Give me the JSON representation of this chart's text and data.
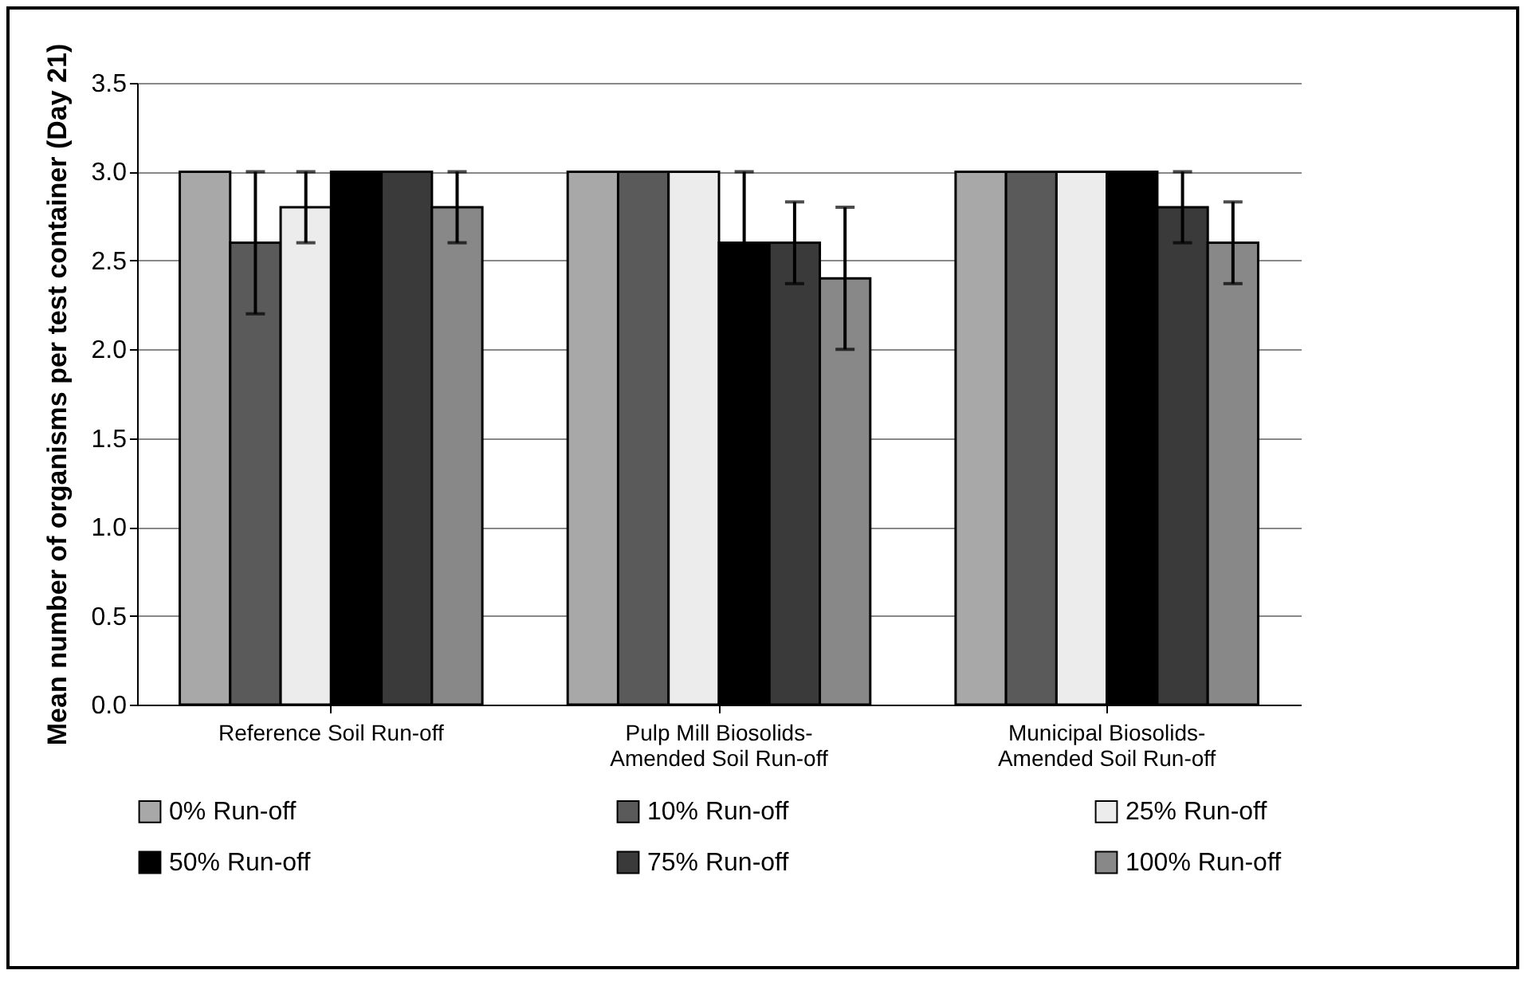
{
  "chart_data": {
    "type": "bar",
    "ylabel": "Mean number of organisms per test container (Day 21)",
    "categories": [
      "Reference Soil Run-off",
      "Pulp Mill Biosolids-Amended Soil Run-off",
      "Municipal Biosolids-Amended Soil Run-off"
    ],
    "series": [
      {
        "name": "0% Run-off",
        "color": "#a8a8a8",
        "values": [
          3.0,
          3.0,
          3.0
        ],
        "errors": [
          null,
          null,
          null
        ]
      },
      {
        "name": "10% Run-off",
        "color": "#5a5a5a",
        "values": [
          2.6,
          3.0,
          3.0
        ],
        "errors": [
          0.4,
          null,
          null
        ]
      },
      {
        "name": "25% Run-off",
        "color": "#ececec",
        "values": [
          2.8,
          3.0,
          3.0
        ],
        "errors": [
          0.2,
          null,
          null
        ]
      },
      {
        "name": "50% Run-off",
        "color": "#000000",
        "values": [
          3.0,
          2.6,
          3.0
        ],
        "errors": [
          null,
          0.4,
          null
        ]
      },
      {
        "name": "75% Run-off",
        "color": "#3a3a3a",
        "values": [
          3.0,
          2.6,
          2.8
        ],
        "errors": [
          null,
          0.23,
          0.2
        ]
      },
      {
        "name": "100% Run-off",
        "color": "#888888",
        "values": [
          2.8,
          2.4,
          2.6
        ],
        "errors": [
          0.2,
          0.4,
          0.23
        ]
      }
    ],
    "ylim": [
      0,
      3.5
    ],
    "yticks": [
      {
        "value": 0,
        "label": "0.0"
      },
      {
        "value": 0.5,
        "label": "0.5"
      },
      {
        "value": 1,
        "label": "1.0"
      },
      {
        "value": 1.5,
        "label": "1.5"
      },
      {
        "value": 2,
        "label": "2.0"
      },
      {
        "value": 2.5,
        "label": "2.5"
      },
      {
        "value": 3,
        "label": "3.0"
      },
      {
        "value": 3.5,
        "label": "3.5"
      }
    ],
    "grid": "y",
    "legend": "bottom"
  }
}
